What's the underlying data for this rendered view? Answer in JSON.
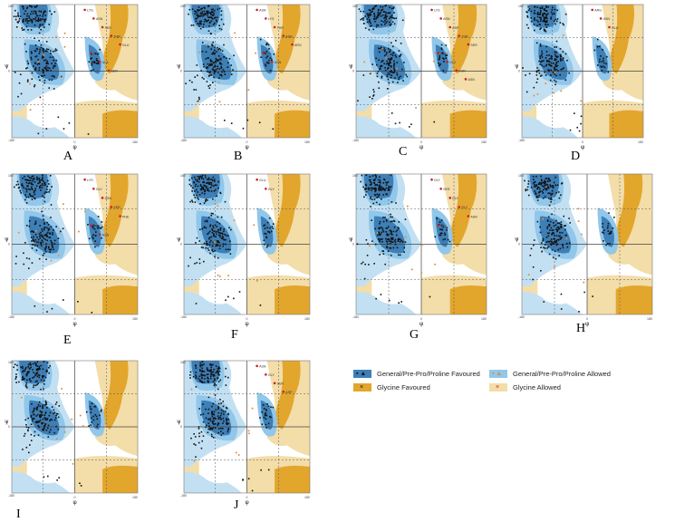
{
  "figure": {
    "axis": {
      "phi_symbol": "φ",
      "psi_symbol": "ψ",
      "x_ticks": [
        "-180",
        "0",
        "180"
      ],
      "y_ticks": [
        "180",
        "0",
        "-180"
      ],
      "xlim": [
        -180,
        180
      ],
      "ylim": [
        -180,
        180
      ]
    },
    "colors": {
      "general_favoured": "#3d7fb7",
      "general_allowed": "#90c7ea",
      "outer": "#c3e0f3",
      "glycine_favoured": "#e2a62d",
      "glycine_allowed": "#f3dda8",
      "background": "#ffffff",
      "outlier": "#cc2222",
      "point": "#111111",
      "allowed_point": "#e0903a"
    },
    "panels": [
      {
        "label": "A",
        "outliers": [
          "LYS",
          "ASN",
          "SER",
          "THR",
          "GLU",
          "ASP",
          "ALA",
          "SER"
        ]
      },
      {
        "label": "B",
        "outliers": [
          "ASN",
          "LYS",
          "THR",
          "ASN",
          "ARG",
          "LYS",
          "ASN"
        ]
      },
      {
        "label": "C",
        "outliers": [
          "LYS",
          "ASN",
          "ASP",
          "THR",
          "SER",
          "GLN",
          "GLY",
          "THR",
          "ASN"
        ]
      },
      {
        "label": "D",
        "outliers": [
          "ARG",
          "ASN",
          "GLU"
        ]
      },
      {
        "label": "E",
        "outliers": [
          "LYS",
          "GLY",
          "ASN",
          "SER",
          "PHE",
          "SER",
          "ASN"
        ]
      },
      {
        "label": "F",
        "outliers": [
          "GLU",
          "GLY"
        ]
      },
      {
        "label": "G",
        "outliers": [
          "GLY",
          "SER",
          "GLY",
          "GLY",
          "ASN",
          "GLY"
        ]
      },
      {
        "label": "H",
        "outliers": []
      },
      {
        "label": "I",
        "outliers": []
      },
      {
        "label": "J",
        "outliers": [
          "ASN",
          "GLY",
          "SER",
          "ASP"
        ]
      }
    ]
  },
  "legend": {
    "items": [
      {
        "label": "General/Pre-Pro/Proline Favoured",
        "swatch": "#3d7fb7",
        "marks": "▪ ▲",
        "mark_color": "#111111"
      },
      {
        "label": "General/Pre-Pro/Proline Allowed",
        "swatch": "#90c7ea",
        "marks": "▪ ▲",
        "mark_color": "#e0903a"
      },
      {
        "label": "Glycine Favoured",
        "swatch": "#e2a62d",
        "marks": "×",
        "mark_color": "#111111"
      },
      {
        "label": "Glycine Allowed",
        "swatch": "#f3dda8",
        "marks": "×",
        "mark_color": "#cc2222"
      }
    ]
  }
}
